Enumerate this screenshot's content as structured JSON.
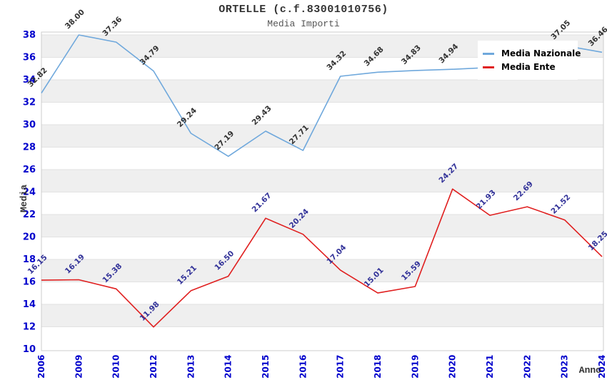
{
  "header": {
    "title": "ORTELLE (c.f.83001010756)",
    "subtitle": "Media Importi"
  },
  "axes": {
    "y_title": "Media",
    "x_title": "Anno",
    "y_ticks": [
      10,
      12,
      14,
      16,
      18,
      20,
      22,
      24,
      26,
      28,
      30,
      32,
      34,
      36,
      38
    ],
    "ylim": [
      10,
      38
    ]
  },
  "legend": {
    "items": [
      {
        "label": "Media Nazionale",
        "color": "#6FA8DC"
      },
      {
        "label": "Media Ente",
        "color": "#E01F1F"
      }
    ]
  },
  "colors": {
    "nazionale_line": "#6FA8DC",
    "ente_line": "#E01F1F",
    "tick_text": "#0000CC",
    "nazionale_label_text": "#333333",
    "ente_label_text": "#333399",
    "band_fill": "#EFEFEF",
    "grid_line": "#E2E2E2",
    "plot_border": "#CCCCCC"
  },
  "chart_data": {
    "type": "line",
    "title": "ORTELLE (c.f.83001010756)",
    "subtitle": "Media Importi",
    "xlabel": "Anno",
    "ylabel": "Media",
    "ylim": [
      10,
      38
    ],
    "grid": "horizontal-bands",
    "legend_position": "top-right-overlay",
    "categories": [
      "2006",
      "2009",
      "2010",
      "2012",
      "2013",
      "2014",
      "2015",
      "2016",
      "2017",
      "2018",
      "2019",
      "2020",
      "2021",
      "2022",
      "2023",
      "2024"
    ],
    "series": [
      {
        "name": "Media Nazionale",
        "values": [
          32.82,
          38.0,
          37.36,
          34.79,
          29.24,
          27.19,
          29.43,
          27.71,
          34.32,
          34.68,
          34.83,
          34.94,
          35.1,
          36.1,
          37.05,
          36.46
        ],
        "point_labels": [
          "32.82",
          "38.00",
          "37.36",
          "34.79",
          "29.24",
          "27.19",
          "29.43",
          "27.71",
          "34.32",
          "34.68",
          "34.83",
          "34.94",
          "",
          "",
          "37.05",
          "36.46"
        ],
        "note_hidden_labels": "2021 and 2022 labels hidden behind legend box"
      },
      {
        "name": "Media Ente",
        "values": [
          16.15,
          16.19,
          15.38,
          11.98,
          15.21,
          16.5,
          21.67,
          20.24,
          17.04,
          15.01,
          15.59,
          24.27,
          21.93,
          22.69,
          21.52,
          18.25
        ],
        "point_labels": [
          "16.15",
          "16.19",
          "15.38",
          "11.98",
          "15.21",
          "16.50",
          "21.67",
          "20.24",
          "17.04",
          "15.01",
          "15.59",
          "24.27",
          "21.93",
          "22.69",
          "21.52",
          "18.25"
        ]
      }
    ]
  }
}
